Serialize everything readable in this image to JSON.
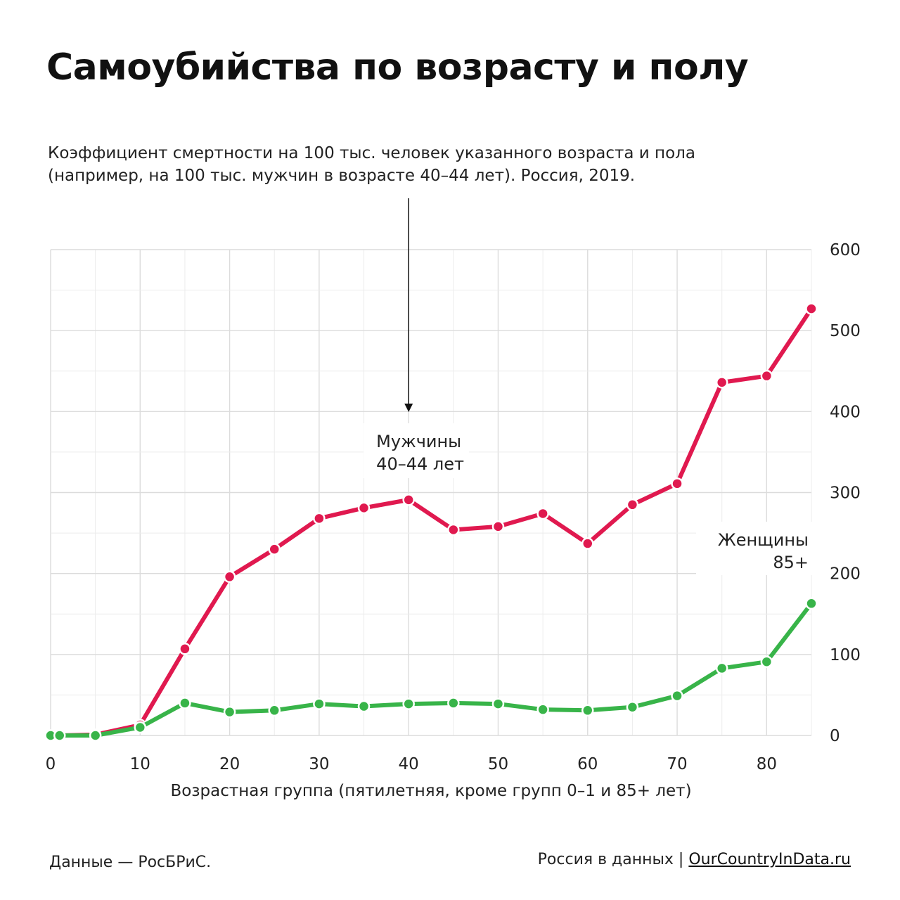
{
  "title": "Самоубийства по возрасту и полу",
  "subtitle_line1": "Коэффициент смертности на 100 тыс. человек указанного возраста и пола",
  "subtitle_line2": "(например, на 100 тыс. мужчин в возрасте 40–44 лет). Россия, 2019.",
  "footer": {
    "source": "Данные — РосБРиС.",
    "brand": "Россия в данных",
    "separator": "|",
    "link": "OurCountryInData.ru"
  },
  "colors": {
    "men": "#e0194f",
    "women": "#38b449",
    "grid": "#e3e3e3",
    "axis_text": "#222222"
  },
  "chart_data": {
    "type": "line",
    "title": "Самоубийства по возрасту и полу",
    "xlabel": "Возрастная группа (пятилетняя, кроме групп 0–1 и 85+ лет)",
    "ylabel": "",
    "xlim": [
      0,
      85
    ],
    "ylim": [
      0,
      600
    ],
    "x_ticks": [
      0,
      10,
      20,
      30,
      40,
      50,
      60,
      70,
      80
    ],
    "y_ticks": [
      0,
      100,
      200,
      300,
      400,
      500,
      600
    ],
    "y_axis_side": "right",
    "grid": true,
    "x": [
      0,
      1,
      5,
      10,
      15,
      20,
      25,
      30,
      35,
      40,
      45,
      50,
      55,
      60,
      65,
      70,
      75,
      80,
      85
    ],
    "series": [
      {
        "name": "Мужчины",
        "color": "#e0194f",
        "values": [
          0,
          0,
          1,
          13,
          107,
          196,
          230,
          268,
          281,
          291,
          254,
          258,
          274,
          237,
          285,
          311,
          436,
          444,
          527
        ]
      },
      {
        "name": "Женщины",
        "color": "#38b449",
        "values": [
          0,
          0,
          0,
          10,
          40,
          29,
          31,
          39,
          36,
          39,
          40,
          39,
          32,
          31,
          35,
          49,
          83,
          91,
          163
        ]
      }
    ],
    "annotations": [
      {
        "text_line1": "Мужчины",
        "text_line2": "40–44 лет",
        "series": "Мужчины",
        "x": 40,
        "arrow": true
      },
      {
        "text_line1": "Женщины",
        "text_line2": "85+",
        "series": "Женщины",
        "x": 85,
        "arrow": false
      }
    ]
  }
}
